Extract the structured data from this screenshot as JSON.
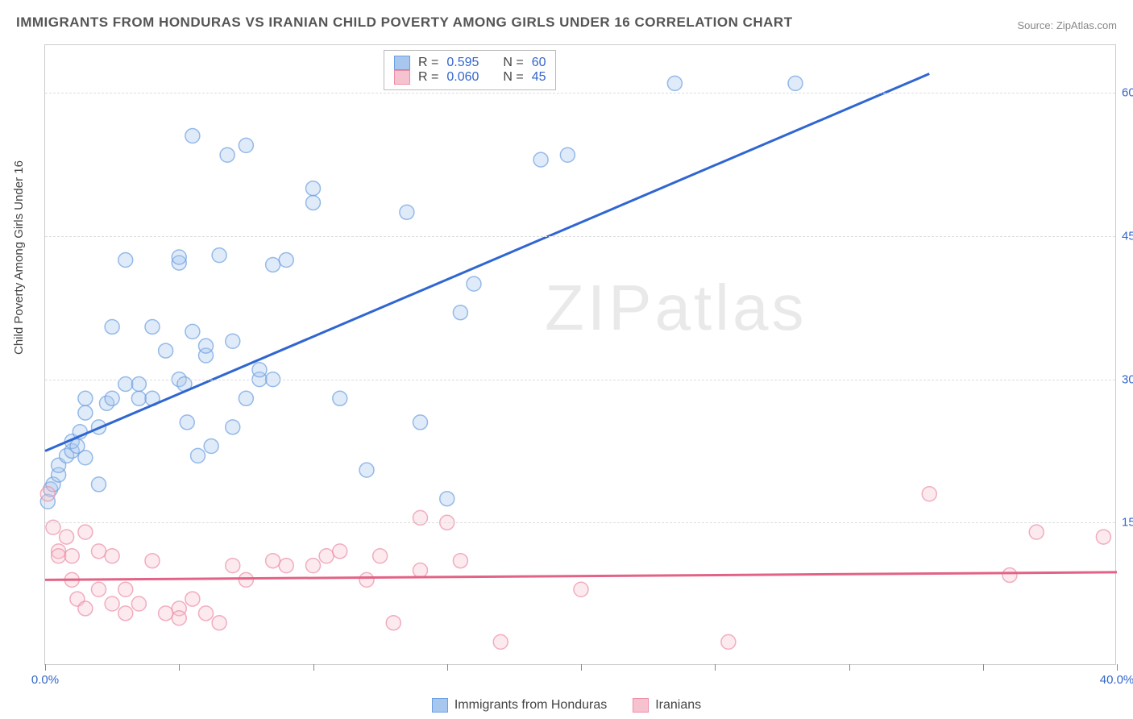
{
  "title": "IMMIGRANTS FROM HONDURAS VS IRANIAN CHILD POVERTY AMONG GIRLS UNDER 16 CORRELATION CHART",
  "source": "Source: ZipAtlas.com",
  "y_axis_label": "Child Poverty Among Girls Under 16",
  "watermark": {
    "zip": "ZIP",
    "atlas": "atlas"
  },
  "chart": {
    "type": "scatter",
    "xlim": [
      0,
      40
    ],
    "ylim": [
      0,
      65
    ],
    "x_ticks": [
      0,
      5,
      10,
      15,
      20,
      25,
      30,
      35,
      40
    ],
    "x_tick_labels": {
      "0": "0.0%",
      "40": "40.0%"
    },
    "y_ticks": [
      15,
      30,
      45,
      60
    ],
    "y_tick_labels": [
      "15.0%",
      "30.0%",
      "45.0%",
      "60.0%"
    ],
    "background_color": "#ffffff",
    "grid_color": "#dddddd",
    "axis_label_color": "#3366cc",
    "marker_radius": 9,
    "series": [
      {
        "key": "honduras",
        "label": "Immigrants from Honduras",
        "color_fill": "#a7c7ee",
        "color_stroke": "#6d9fe0",
        "trend_color": "#2f66d1",
        "R": "0.595",
        "N": "60",
        "trend": {
          "x1": 0,
          "y1": 22.5,
          "x2": 33,
          "y2": 62
        },
        "points": [
          [
            0.1,
            17.2
          ],
          [
            0.2,
            18.5
          ],
          [
            0.3,
            19.0
          ],
          [
            0.5,
            20.0
          ],
          [
            0.5,
            21.0
          ],
          [
            0.8,
            22.0
          ],
          [
            1.0,
            22.5
          ],
          [
            1.0,
            23.5
          ],
          [
            1.2,
            23.0
          ],
          [
            1.3,
            24.5
          ],
          [
            1.5,
            21.8
          ],
          [
            1.5,
            26.5
          ],
          [
            1.5,
            28.0
          ],
          [
            2.0,
            19.0
          ],
          [
            2.0,
            25.0
          ],
          [
            2.3,
            27.5
          ],
          [
            2.5,
            28.0
          ],
          [
            2.5,
            35.5
          ],
          [
            3.0,
            29.5
          ],
          [
            3.0,
            42.5
          ],
          [
            3.5,
            28.0
          ],
          [
            3.5,
            29.5
          ],
          [
            4.0,
            28.0
          ],
          [
            4.0,
            35.5
          ],
          [
            4.5,
            33.0
          ],
          [
            5.0,
            30.0
          ],
          [
            5.0,
            42.2
          ],
          [
            5.0,
            42.8
          ],
          [
            5.2,
            29.5
          ],
          [
            5.3,
            25.5
          ],
          [
            5.5,
            35.0
          ],
          [
            5.5,
            55.5
          ],
          [
            5.7,
            22.0
          ],
          [
            6.0,
            32.5
          ],
          [
            6.0,
            33.5
          ],
          [
            6.2,
            23.0
          ],
          [
            6.5,
            43.0
          ],
          [
            6.8,
            53.5
          ],
          [
            7.0,
            25.0
          ],
          [
            7.0,
            34.0
          ],
          [
            7.5,
            28.0
          ],
          [
            7.5,
            54.5
          ],
          [
            8.0,
            30.0
          ],
          [
            8.0,
            31.0
          ],
          [
            8.5,
            30.0
          ],
          [
            8.5,
            42.0
          ],
          [
            9.0,
            42.5
          ],
          [
            10.0,
            48.5
          ],
          [
            10.0,
            50.0
          ],
          [
            11.0,
            28.0
          ],
          [
            12.0,
            20.5
          ],
          [
            13.5,
            47.5
          ],
          [
            14.0,
            25.5
          ],
          [
            15.0,
            17.5
          ],
          [
            15.5,
            37.0
          ],
          [
            16.0,
            40.0
          ],
          [
            18.5,
            53.0
          ],
          [
            19.5,
            53.5
          ],
          [
            23.5,
            61.0
          ],
          [
            28.0,
            61.0
          ]
        ]
      },
      {
        "key": "iranians",
        "label": "Iranians",
        "color_fill": "#f7c2cf",
        "color_stroke": "#eb8fa6",
        "trend_color": "#e26385",
        "R": "0.060",
        "N": "45",
        "trend": {
          "x1": 0,
          "y1": 9.0,
          "x2": 40,
          "y2": 9.8
        },
        "points": [
          [
            0.1,
            18.0
          ],
          [
            0.3,
            14.5
          ],
          [
            0.5,
            12.0
          ],
          [
            0.5,
            11.5
          ],
          [
            0.8,
            13.5
          ],
          [
            1.0,
            9.0
          ],
          [
            1.0,
            11.5
          ],
          [
            1.2,
            7.0
          ],
          [
            1.5,
            6.0
          ],
          [
            1.5,
            14.0
          ],
          [
            2.0,
            8.0
          ],
          [
            2.0,
            12.0
          ],
          [
            2.5,
            6.5
          ],
          [
            2.5,
            11.5
          ],
          [
            3.0,
            5.5
          ],
          [
            3.0,
            8.0
          ],
          [
            3.5,
            6.5
          ],
          [
            4.0,
            11.0
          ],
          [
            4.5,
            5.5
          ],
          [
            5.0,
            6.0
          ],
          [
            5.0,
            5.0
          ],
          [
            5.5,
            7.0
          ],
          [
            6.0,
            5.5
          ],
          [
            6.5,
            4.5
          ],
          [
            7.0,
            10.5
          ],
          [
            7.5,
            9.0
          ],
          [
            8.5,
            11.0
          ],
          [
            9.0,
            10.5
          ],
          [
            10.0,
            10.5
          ],
          [
            10.5,
            11.5
          ],
          [
            11.0,
            12.0
          ],
          [
            12.0,
            9.0
          ],
          [
            12.5,
            11.5
          ],
          [
            13.0,
            4.5
          ],
          [
            14.0,
            15.5
          ],
          [
            14.0,
            10.0
          ],
          [
            15.0,
            15.0
          ],
          [
            15.5,
            11.0
          ],
          [
            17.0,
            2.5
          ],
          [
            20.0,
            8.0
          ],
          [
            25.5,
            2.5
          ],
          [
            33.0,
            18.0
          ],
          [
            36.0,
            9.5
          ],
          [
            37.0,
            14.0
          ],
          [
            39.5,
            13.5
          ]
        ]
      }
    ]
  },
  "legend_top": {
    "R_label": "R =",
    "N_label": "N ="
  }
}
